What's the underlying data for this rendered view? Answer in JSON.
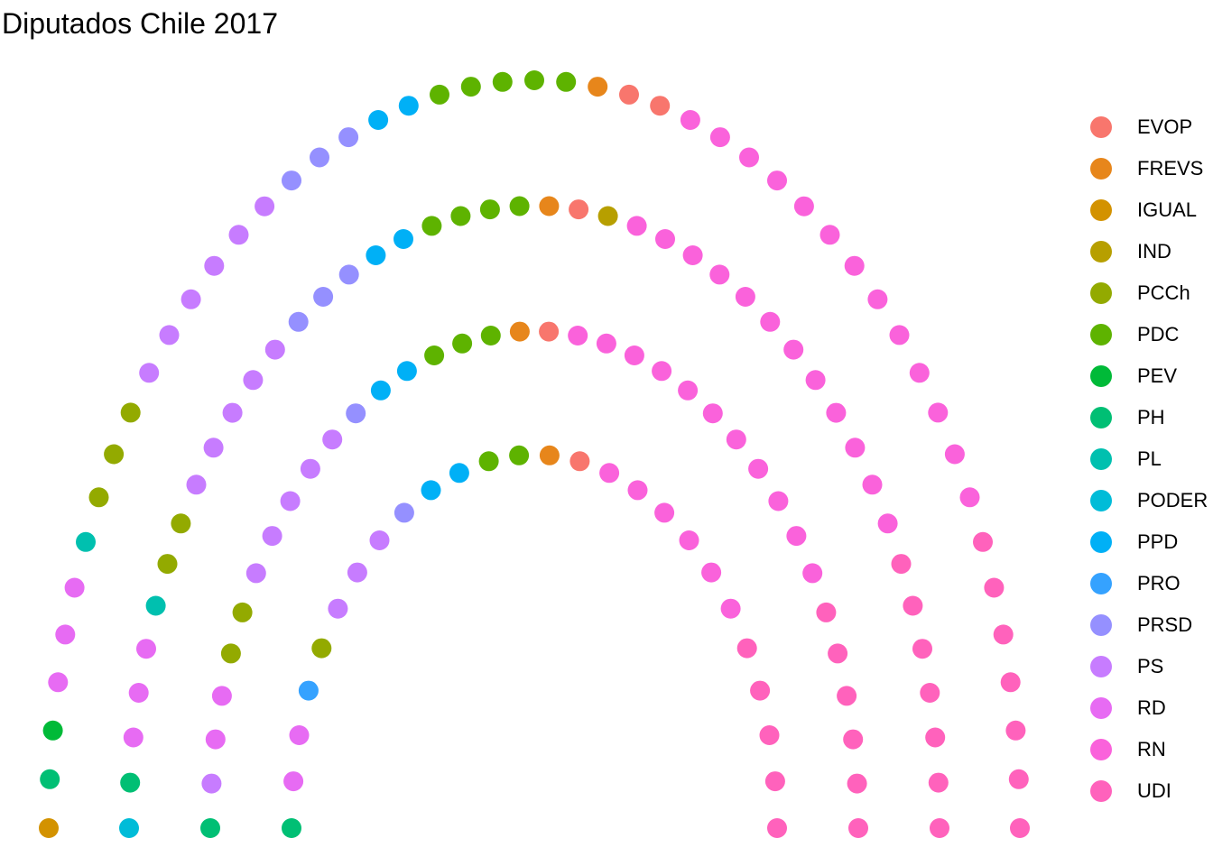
{
  "chart_data": {
    "type": "parliament",
    "title": "Diputados Chile 2017",
    "total_seats": 155,
    "parties": [
      {
        "name": "EVOP",
        "seats": 4,
        "color": "#F8766D"
      },
      {
        "name": "FREVS",
        "seats": 4,
        "color": "#E7861B"
      },
      {
        "name": "IGUAL",
        "seats": 1,
        "color": "#D39200"
      },
      {
        "name": "IND",
        "seats": 1,
        "color": "#B79F00"
      },
      {
        "name": "PCCh",
        "seats": 8,
        "color": "#93AA00"
      },
      {
        "name": "PDC",
        "seats": 14,
        "color": "#5EB300"
      },
      {
        "name": "PEV",
        "seats": 1,
        "color": "#00BA38"
      },
      {
        "name": "PH",
        "seats": 5,
        "color": "#00BF74"
      },
      {
        "name": "PL",
        "seats": 2,
        "color": "#00C0AF"
      },
      {
        "name": "PODER",
        "seats": 1,
        "color": "#00BCD8"
      },
      {
        "name": "PPD",
        "seats": 8,
        "color": "#00B0F6"
      },
      {
        "name": "PRO",
        "seats": 1,
        "color": "#35A2FF"
      },
      {
        "name": "PRSD",
        "seats": 8,
        "color": "#9590FF"
      },
      {
        "name": "PS",
        "seats": 19,
        "color": "#C77CFF"
      },
      {
        "name": "RD",
        "seats": 11,
        "color": "#E76BF3"
      },
      {
        "name": "RN",
        "seats": 37,
        "color": "#FA62DB"
      },
      {
        "name": "UDI",
        "seats": 30,
        "color": "#FF62BC"
      }
    ],
    "rows": [
      {
        "seats": 26,
        "sequence": [
          [
            "PRO",
            1
          ],
          [
            "PPD",
            1
          ],
          [
            "PDC",
            2
          ],
          [
            "FREVS",
            1
          ],
          [
            "EVOP",
            1
          ],
          [
            "RN",
            7
          ],
          [
            "UDI",
            3
          ],
          [
            "RN",
            0
          ],
          [
            "PS",
            1
          ],
          [
            "PS",
            1
          ],
          [
            "PS",
            1
          ],
          [
            "PS",
            1
          ],
          [
            "PS",
            1
          ],
          [
            "PS",
            1
          ],
          [
            "PRSD",
            1
          ],
          [
            "PRSD",
            0
          ],
          [
            "PS",
            1
          ],
          [
            "RD",
            2
          ],
          [
            "PCCh",
            1
          ],
          [
            "IGUAL",
            0
          ],
          [
            "PH",
            1
          ],
          [
            "UDI",
            0
          ],
          [
            "RD",
            0
          ],
          [
            "PPD",
            1
          ],
          [
            "PDC",
            0
          ],
          [
            "UDI",
            1
          ]
        ]
      },
      {
        "seats": 36,
        "sequence": []
      },
      {
        "seats": 44,
        "sequence": []
      },
      {
        "seats": 49,
        "sequence": []
      }
    ],
    "legend": {
      "position": "right"
    }
  }
}
